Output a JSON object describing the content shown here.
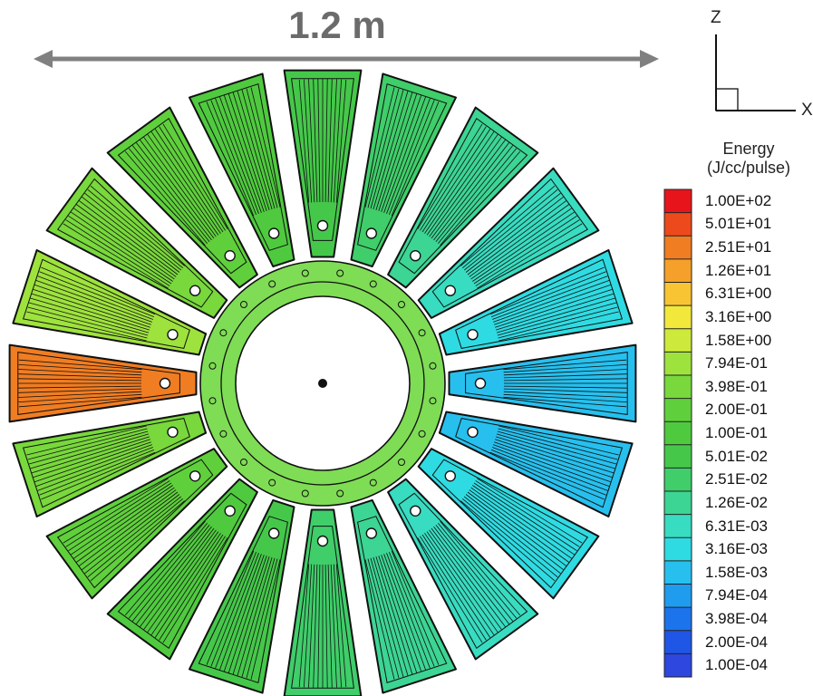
{
  "dimension": {
    "label": "1.2 m",
    "arrow_color": "#808080"
  },
  "axes": {
    "vertical": "Z",
    "horizontal": "X"
  },
  "legend": {
    "title_line1": "Energy",
    "title_line2": "(J/cc/pulse)",
    "levels": [
      {
        "label": "1.00E+02",
        "color": "#e8141c"
      },
      {
        "label": "5.01E+01",
        "color": "#ec4a1c"
      },
      {
        "label": "2.51E+01",
        "color": "#f07d22"
      },
      {
        "label": "1.26E+01",
        "color": "#f5a02a"
      },
      {
        "label": "6.31E+00",
        "color": "#f8c434"
      },
      {
        "label": "3.16E+00",
        "color": "#f2e83c"
      },
      {
        "label": "1.58E+00",
        "color": "#cde93c"
      },
      {
        "label": "7.94E-01",
        "color": "#9ee23d"
      },
      {
        "label": "3.98E-01",
        "color": "#78d83c"
      },
      {
        "label": "2.00E-01",
        "color": "#5fd03c"
      },
      {
        "label": "1.00E-01",
        "color": "#4fca3f"
      },
      {
        "label": "5.01E-02",
        "color": "#45c84a"
      },
      {
        "label": "2.51E-02",
        "color": "#3fce6a"
      },
      {
        "label": "1.26E-02",
        "color": "#3cd594"
      },
      {
        "label": "6.31E-03",
        "color": "#38dcc0"
      },
      {
        "label": "3.16E-03",
        "color": "#2fdbe2"
      },
      {
        "label": "1.58E-03",
        "color": "#27c0ee"
      },
      {
        "label": "7.94E-04",
        "color": "#1f9cee"
      },
      {
        "label": "3.98E-04",
        "color": "#1c74ec"
      },
      {
        "label": "2.00E-04",
        "color": "#2056e6"
      },
      {
        "label": "1.00E-04",
        "color": "#2d47df"
      }
    ]
  },
  "detector": {
    "segment_count": 20,
    "outline_color": "#111111",
    "segment_colors": [
      "#f07d22",
      "#9ee23d",
      "#78d83c",
      "#5fd03c",
      "#4fca3f",
      "#45c84a",
      "#3fce6a",
      "#3cd594",
      "#38dcc0",
      "#2fdbe2",
      "#27c0ee",
      "#27c0ee",
      "#2fdbe2",
      "#38dcc0",
      "#3cd594",
      "#3fce6a",
      "#45c84a",
      "#4fca3f",
      "#5fd03c",
      "#78d83c"
    ]
  }
}
